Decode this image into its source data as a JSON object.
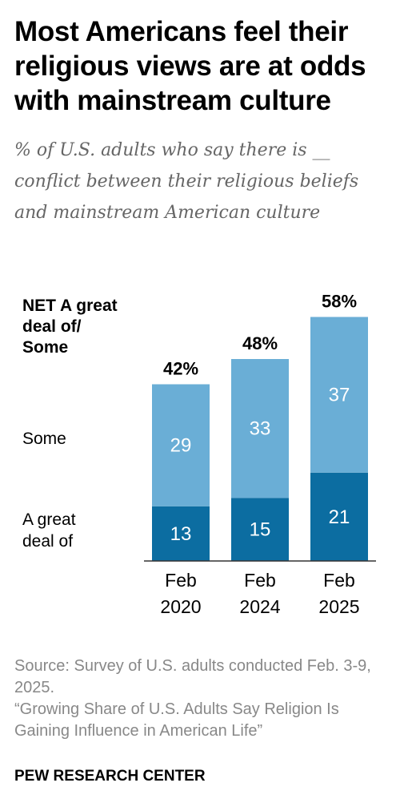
{
  "title": "Most Americans feel their religious views are at odds with mainstream culture",
  "subtitle": "% of U.S. adults who say there is __ conflict between their religious beliefs and mainstream American culture",
  "legend": {
    "net_line1": "NET A great",
    "net_line2": "deal of/",
    "net_line3": "Some",
    "some": "Some",
    "great_line1": "A great",
    "great_line2": "deal of"
  },
  "colors": {
    "great_deal": "#0c6da1",
    "some": "#6aaed6",
    "axis": "#333333"
  },
  "chart_data": {
    "type": "bar",
    "stacked": true,
    "categories": [
      "Feb 2020",
      "Feb 2024",
      "Feb 2025"
    ],
    "category_lines": [
      [
        "Feb",
        "2020"
      ],
      [
        "Feb",
        "2024"
      ],
      [
        "Feb",
        "2025"
      ]
    ],
    "series": [
      {
        "name": "A great deal of",
        "values": [
          13,
          15,
          21
        ]
      },
      {
        "name": "Some",
        "values": [
          29,
          33,
          37
        ]
      }
    ],
    "totals": [
      "42%",
      "48%",
      "58%"
    ],
    "total_values": [
      42,
      48,
      58
    ],
    "ylim": [
      0,
      60
    ]
  },
  "source": "Source: Survey of U.S. adults conducted Feb. 3-9, 2025.",
  "report": "“Growing Share of U.S. Adults Say Religion Is Gaining Influence in American Life”",
  "credit": "PEW RESEARCH CENTER"
}
